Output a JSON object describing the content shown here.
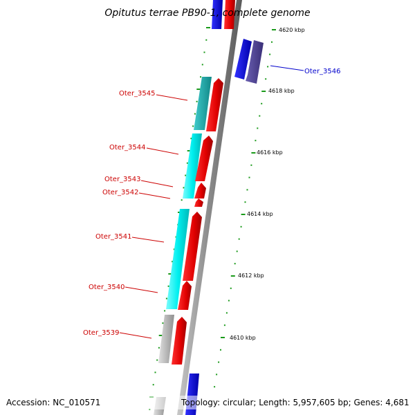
{
  "title": "Opitutus terrae PB90-1, complete genome",
  "footer": {
    "accession": "Accession: NC_010571",
    "topology": "Topology: circular; Length: 5,957,605 bp; Genes: 4,681"
  },
  "ticks": [
    "4620 kbp",
    "4618 kbp",
    "4616 kbp",
    "4614 kbp",
    "4612 kbp",
    "4610 kbp"
  ],
  "genes": [
    {
      "label": "Oter_3546",
      "color": "#0000cc"
    },
    {
      "label": "Oter_3545",
      "color": "#cc0000"
    },
    {
      "label": "Oter_3544",
      "color": "#cc0000"
    },
    {
      "label": "Oter_3543",
      "color": "#cc0000"
    },
    {
      "label": "Oter_3542",
      "color": "#cc0000"
    },
    {
      "label": "Oter_3541",
      "color": "#cc0000"
    },
    {
      "label": "Oter_3540",
      "color": "#cc0000"
    },
    {
      "label": "Oter_3539",
      "color": "#cc0000"
    }
  ],
  "colors": {
    "forward": "#ee0000",
    "reverse": "#0000ee",
    "reverse_dark": "#4a3f8f",
    "cyan": "#00e5e5",
    "teal": "#1fb3b3",
    "gray": "#b0b0b0",
    "tick": "#1a9a1a",
    "backbone": "#888888"
  }
}
